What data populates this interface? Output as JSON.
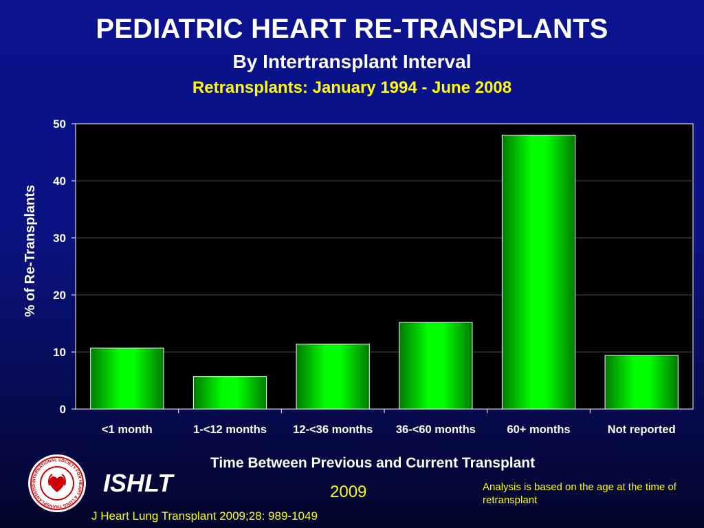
{
  "header": {
    "title": "PEDIATRIC HEART RE-TRANSPLANTS",
    "subtitle": "By Intertransplant Interval",
    "subtitle2": "Retransplants: January 1994 - June 2008"
  },
  "chart_data": {
    "type": "bar",
    "categories": [
      "<1 month",
      "1-<12 months",
      "12-<36 months",
      "36-<60 months",
      "60+ months",
      "Not reported"
    ],
    "values": [
      10.7,
      5.7,
      11.4,
      15.2,
      48.0,
      9.4
    ],
    "xlabel": "Time Between Previous and Current Transplant",
    "ylabel": "% of Re-Transplants",
    "ylim": [
      0,
      50
    ],
    "yticks": [
      0,
      10,
      20,
      30,
      40,
      50
    ],
    "grid": true,
    "colors": {
      "bar": "#00ff00",
      "plot_bg": "#000000"
    }
  },
  "footer": {
    "org": "ISHLT",
    "year": "2009",
    "note": "Analysis is based on the age at the time of retransplant",
    "citation": "J Heart Lung Transplant 2009;28: 989-1049",
    "logo_text": "INTERNATIONAL SOCIETY FOR HEART & LUNG TRANSPLANTATION"
  }
}
